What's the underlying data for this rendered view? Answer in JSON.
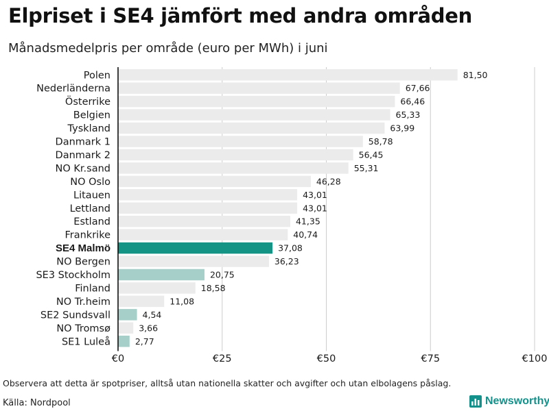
{
  "header": {
    "title": "Elpriset i SE4 jämfört med andra områden",
    "subtitle": "Månadsmedelpris per område (euro per MWh) i juni"
  },
  "footer": {
    "note": "Observera att detta är spotpriser, alltså utan nationella skatter och avgifter och utan elbolagens påslag.",
    "source": "Källa: Nordpool",
    "brand": "Newsworthy"
  },
  "colors": {
    "highlight": "#149484",
    "sweden": "#a5cfc8",
    "other": "#ebebeb",
    "axis": "#000000",
    "grid": "#cccccc",
    "brand": "#14918b"
  },
  "chart_data": {
    "type": "bar",
    "orientation": "horizontal",
    "title": "Elpriset i SE4 jämfört med andra områden",
    "subtitle": "Månadsmedelpris per område (euro per MWh) i juni",
    "xlabel": "",
    "ylabel": "",
    "xlim": [
      0,
      100
    ],
    "xticks": [
      0,
      25,
      50,
      75,
      100
    ],
    "xtick_labels": [
      "€0",
      "€25",
      "€50",
      "€75",
      "€100"
    ],
    "grid": true,
    "legend": "none",
    "categories": [
      "Polen",
      "Nederländerna",
      "Österrike",
      "Belgien",
      "Tyskland",
      "Danmark  1",
      "Danmark  2",
      "NO Kr.sand",
      "NO Oslo",
      "Litauen",
      "Lettland",
      "Estland",
      "Frankrike",
      "SE4 Malmö",
      "NO Bergen",
      "SE3  Stockholm",
      "Finland",
      "NO Tr.heim",
      "SE2  Sundsvall",
      "NO Tromsø",
      "SE1  Luleå"
    ],
    "values": [
      81.5,
      67.66,
      66.46,
      65.33,
      63.99,
      58.78,
      56.45,
      55.31,
      46.28,
      43.01,
      43.01,
      41.35,
      40.74,
      37.08,
      36.23,
      20.75,
      18.58,
      11.08,
      4.54,
      3.66,
      2.77
    ],
    "value_labels": [
      "81,50",
      "67,66",
      "66,46",
      "65,33",
      "63,99",
      "58,78",
      "56,45",
      "55,31",
      "46,28",
      "43,01",
      "43,01",
      "41,35",
      "40,74",
      "37,08",
      "36,23",
      "20,75",
      "18,58",
      "11,08",
      "4,54",
      "3,66",
      "2,77"
    ],
    "groups": [
      "other",
      "other",
      "other",
      "other",
      "other",
      "other",
      "other",
      "other",
      "other",
      "other",
      "other",
      "other",
      "other",
      "highlight",
      "other",
      "sweden",
      "other",
      "other",
      "sweden",
      "other",
      "sweden"
    ],
    "highlighted_category": "SE4 Malmö"
  }
}
